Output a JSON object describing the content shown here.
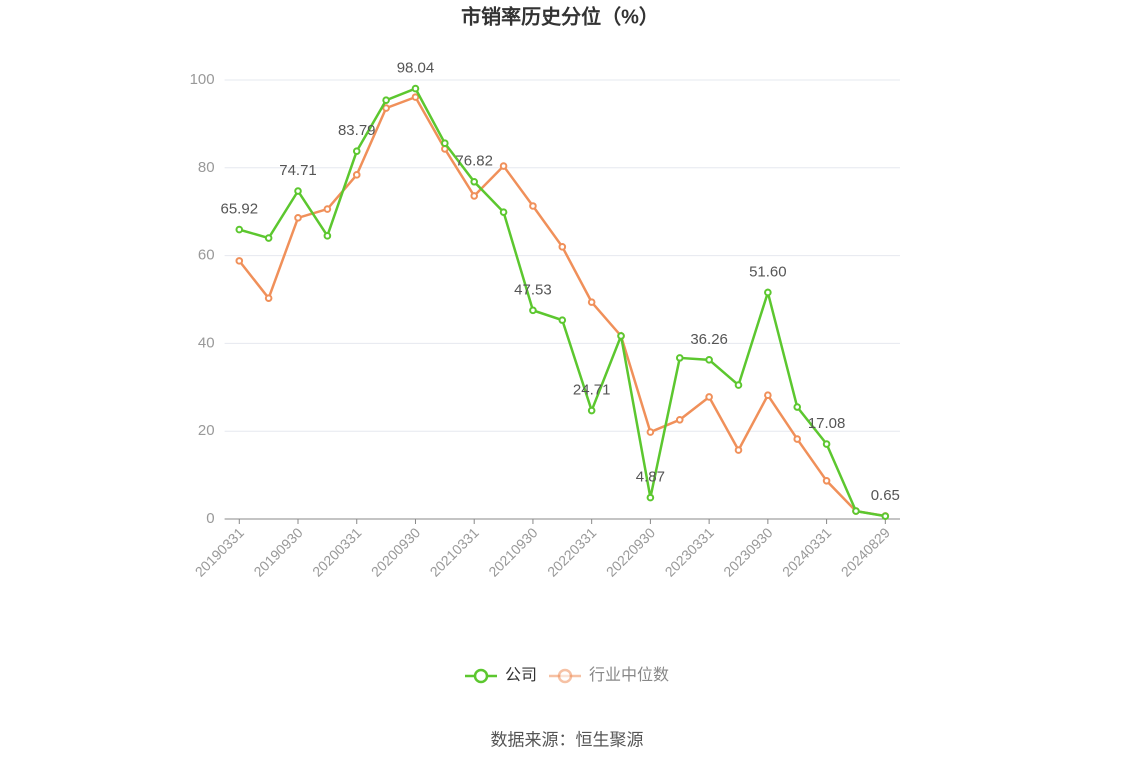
{
  "chart_data": {
    "type": "line",
    "title": "市销率历史分位（%）",
    "categories": [
      "20190331",
      null,
      "20190930",
      null,
      "20200331",
      null,
      "20200930",
      null,
      "20210331",
      null,
      "20210930",
      null,
      "20220331",
      null,
      "20220930",
      null,
      "20230331",
      null,
      "20230930",
      null,
      "20240331",
      null,
      "20240829"
    ],
    "series": [
      {
        "name": "公司",
        "color": "#5cc72f",
        "values": [
          65.92,
          64.0,
          74.71,
          64.5,
          83.79,
          95.4,
          98.04,
          85.6,
          76.82,
          69.9,
          47.53,
          45.3,
          24.71,
          41.7,
          4.87,
          36.7,
          36.26,
          30.5,
          51.6,
          25.5,
          17.08,
          1.8,
          0.65
        ],
        "value_labels": [
          "65.92",
          null,
          "74.71",
          null,
          "83.79",
          null,
          "98.04",
          null,
          "76.82",
          null,
          "47.53",
          null,
          "24.71",
          null,
          "4.87",
          null,
          "36.26",
          null,
          "51.60",
          null,
          "17.08",
          null,
          "0.65"
        ]
      },
      {
        "name": "行业中位数",
        "color": "#f0905a",
        "values": [
          58.8,
          50.3,
          68.6,
          70.6,
          78.4,
          93.6,
          96.1,
          84.3,
          73.6,
          80.4,
          71.3,
          62.0,
          49.4,
          41.7,
          19.8,
          22.6,
          27.8,
          15.7,
          28.2,
          18.2,
          8.7,
          1.8,
          0.7
        ]
      }
    ],
    "ylim": [
      0,
      100
    ],
    "yticks": [
      0,
      20,
      40,
      60,
      80,
      100
    ],
    "grid": true,
    "source": "数据来源：恒生聚源"
  }
}
